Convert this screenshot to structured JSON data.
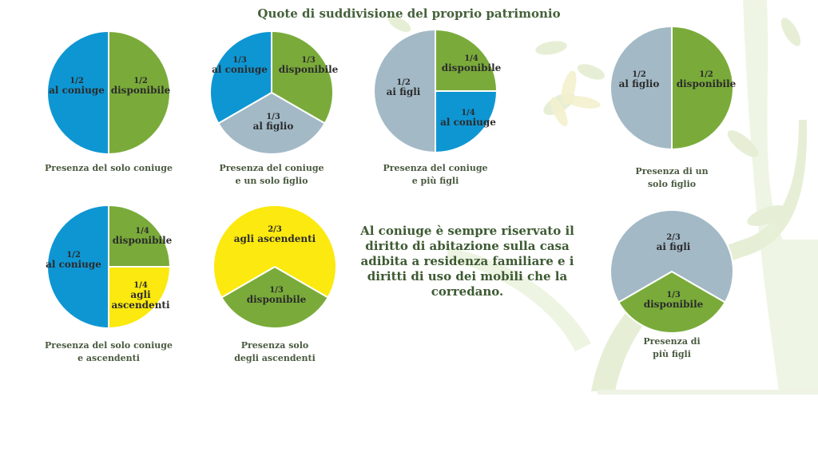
{
  "title": "Quote di suddivisione del proprio patrimonio",
  "note": "Al coniuge è sempre riservato il diritto di abitazione sulla casa adibita a residenza familiare e i diritti di uso dei mobili che la corredano.",
  "colors": {
    "blue": "#0e96d3",
    "green": "#7aab3a",
    "grey": "#a3b9c6",
    "yellow": "#fbe90f",
    "text": "#2b2b2b",
    "title": "#44613a"
  },
  "chart_data": [
    {
      "type": "pie",
      "caption": [
        "Presenza del solo coniuge"
      ],
      "slices": [
        {
          "value": 0.5,
          "fraction": "1/2",
          "label": "disponibile",
          "color": "#7aab3a"
        },
        {
          "value": 0.5,
          "fraction": "1/2",
          "label": "al coniuge",
          "color": "#0e96d3"
        }
      ]
    },
    {
      "type": "pie",
      "caption": [
        "Presenza del coniuge",
        "e un solo figlio"
      ],
      "slices": [
        {
          "value": 0.3333,
          "fraction": "1/3",
          "label": "disponibile",
          "color": "#7aab3a"
        },
        {
          "value": 0.3333,
          "fraction": "1/3",
          "label": "al figlio",
          "color": "#a3b9c6"
        },
        {
          "value": 0.3333,
          "fraction": "1/3",
          "label": "al coniuge",
          "color": "#0e96d3"
        }
      ]
    },
    {
      "type": "pie",
      "caption": [
        "Presenza del coniuge",
        "e più figli"
      ],
      "slices": [
        {
          "value": 0.25,
          "fraction": "1/4",
          "label": "disponibile",
          "color": "#7aab3a"
        },
        {
          "value": 0.25,
          "fraction": "1/4",
          "label": "al coniuge",
          "color": "#0e96d3"
        },
        {
          "value": 0.5,
          "fraction": "1/2",
          "label": "ai figli",
          "color": "#a3b9c6"
        }
      ]
    },
    {
      "type": "pie",
      "caption": [
        "Presenza di un",
        "solo figlio"
      ],
      "slices": [
        {
          "value": 0.5,
          "fraction": "1/2",
          "label": "disponibile",
          "color": "#7aab3a"
        },
        {
          "value": 0.5,
          "fraction": "1/2",
          "label": "al figlio",
          "color": "#a3b9c6"
        }
      ]
    },
    {
      "type": "pie",
      "caption": [
        "Presenza del solo coniuge",
        "e ascendenti"
      ],
      "slices": [
        {
          "value": 0.25,
          "fraction": "1/4",
          "label": "disponibile",
          "color": "#7aab3a"
        },
        {
          "value": 0.25,
          "fraction": "1/4",
          "label": "agli ascendenti",
          "color": "#fbe90f"
        },
        {
          "value": 0.5,
          "fraction": "1/2",
          "label": "al coniuge",
          "color": "#0e96d3"
        }
      ]
    },
    {
      "type": "pie",
      "caption": [
        "Presenza solo",
        "degli ascendenti"
      ],
      "slices": [
        {
          "value": 0.3333,
          "fraction": "1/3",
          "label": "disponibile",
          "color": "#7aab3a"
        },
        {
          "value": 0.6667,
          "fraction": "2/3",
          "label": "agli ascendenti",
          "color": "#fbe90f"
        }
      ]
    },
    {
      "type": "pie",
      "caption": [
        "Presenza di",
        "più figli"
      ],
      "slices": [
        {
          "value": 0.3333,
          "fraction": "1/3",
          "label": "disponibile",
          "color": "#7aab3a"
        },
        {
          "value": 0.6667,
          "fraction": "2/3",
          "label": "ai figli",
          "color": "#a3b9c6"
        }
      ]
    }
  ]
}
